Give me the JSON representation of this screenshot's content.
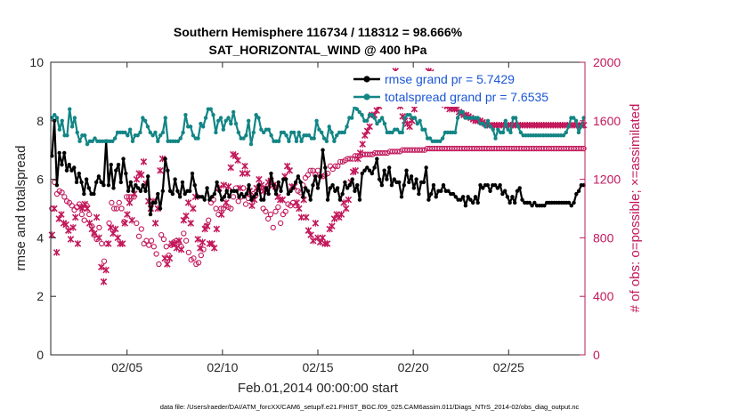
{
  "chart_data": {
    "type": "line",
    "title_line1": "Southern Hemisphere 116734 / 118312 = 98.666%",
    "title_line2": "SAT_HORIZONTAL_WIND @ 400 hPa",
    "xlabel": "Feb.01,2014 00:00:00 start",
    "ylabel_left": "rmse and totalspread",
    "ylabel_right": "# of obs: o=possible; ×=assimilated",
    "footer": "data file: /Users/raeder/DAI/ATM_forcXX/CAM6_setup/f.e21.FHIST_BGC.f09_025.CAM6assim.011/Diags_NTrS_2014-02/obs_diag_output.nc",
    "x_tick_labels": [
      "02/05",
      "02/10",
      "02/15",
      "02/20",
      "02/25"
    ],
    "x_tick_days": [
      5,
      10,
      15,
      20,
      25
    ],
    "xlim": [
      1,
      29.0
    ],
    "ylim_left": [
      0,
      10
    ],
    "ylim_right": [
      0,
      2000
    ],
    "yticks_left": [
      "0",
      "2",
      "4",
      "6",
      "8",
      "10"
    ],
    "yticks_right": [
      "0",
      "400",
      "800",
      "1200",
      "1600",
      "2000"
    ],
    "colors": {
      "rmse": "#000000",
      "spread": "#138585",
      "obs": "#c2185b",
      "legend_text": "#1a56d6"
    },
    "legend": [
      "rmse grand pr = 5.7429",
      "totalspread grand pr = 7.6535"
    ],
    "series": [
      {
        "name": "rmse",
        "values": [
          6.8,
          8.0,
          5.8,
          6.9,
          6.5,
          6.9,
          6.3,
          6.5,
          6.3,
          6.4,
          5.9,
          6.2,
          5.9,
          5.5,
          6.0,
          5.7,
          5.5,
          5.5,
          5.9,
          6.1,
          5.9,
          5.8,
          7.3,
          5.8,
          6.5,
          5.7,
          6.3,
          6.5,
          5.9,
          6.7,
          6.2,
          5.6,
          5.9,
          5.6,
          5.8,
          5.7,
          5.6,
          5.8,
          5.6,
          6.1,
          4.8,
          5.2,
          5.2,
          5.5,
          5.0,
          5.6,
          6.7,
          6.3,
          5.6,
          5.5,
          6.0,
          5.6,
          5.4,
          5.9,
          5.5,
          5.6,
          5.6,
          6.2,
          5.8,
          5.4,
          5.4,
          5.4,
          5.3,
          5.7,
          5.3,
          5.4,
          5.5,
          5.9,
          5.6,
          5.3,
          5.4,
          5.6,
          5.4,
          5.6,
          5.6,
          5.6,
          5.4,
          5.5,
          5.4,
          5.5,
          5.8,
          5.3,
          5.4,
          5.5,
          5.8,
          5.3,
          5.3,
          5.7,
          5.5,
          6.2,
          5.8,
          5.5,
          5.9,
          5.6,
          6.0,
          6.0,
          5.5,
          5.6,
          5.7,
          5.9,
          6.1,
          5.9,
          5.4,
          5.7,
          5.6,
          5.3,
          5.8,
          6.1,
          5.7,
          6.1,
          7.0,
          6.4,
          5.3,
          5.7,
          5.8,
          5.6,
          5.7,
          5.3,
          5.5,
          5.9,
          5.7,
          5.8,
          6.0,
          5.6,
          5.8,
          5.3,
          6.2,
          6.3,
          6.4,
          6.3,
          6.2,
          6.4,
          6.7,
          6.0,
          5.8,
          6.3,
          6.0,
          6.4,
          5.8,
          6.0,
          5.9,
          5.9,
          5.4,
          5.8,
          6.3,
          5.9,
          6.1,
          5.7,
          6.0,
          5.5,
          5.9,
          5.9,
          6.4,
          5.3,
          5.5,
          5.8,
          5.4,
          5.6,
          5.6,
          5.8,
          5.6,
          5.6,
          5.5,
          5.5,
          5.4,
          5.3,
          5.3,
          5.4,
          5.1,
          5.4,
          5.3,
          5.2,
          5.4,
          5.2,
          5.8,
          5.7,
          5.8,
          5.8,
          5.6,
          5.8,
          5.8,
          5.7,
          5.8,
          5.5,
          5.6,
          5.4,
          5.2,
          5.4,
          5.2,
          5.6,
          5.7,
          5.3,
          5.2,
          5.2,
          5.2,
          5.1,
          5.2,
          5.1,
          5.1,
          5.1,
          5.1,
          5.2,
          5.2,
          5.2,
          5.2,
          5.2,
          5.2,
          5.2,
          5.2,
          5.2,
          5.2,
          5.1,
          5.2,
          5.5,
          5.6,
          5.8,
          5.8
        ]
      },
      {
        "name": "totalspread",
        "values": [
          8.1,
          8.2,
          8.1,
          7.7,
          8.0,
          7.5,
          7.5,
          8.4,
          7.8,
          8.1,
          7.6,
          7.3,
          7.5,
          7.5,
          7.2,
          7.3,
          7.3,
          7.4,
          7.3,
          7.3,
          7.3,
          7.3,
          7.3,
          7.3,
          7.3,
          7.4,
          7.6,
          7.6,
          7.6,
          7.6,
          7.5,
          7.7,
          7.3,
          7.5,
          7.5,
          7.6,
          8.1,
          8.0,
          7.8,
          7.6,
          7.5,
          7.6,
          7.3,
          7.5,
          7.6,
          8.1,
          7.3,
          7.3,
          7.3,
          7.3,
          7.3,
          7.4,
          7.6,
          8.2,
          7.8,
          7.8,
          7.5,
          7.4,
          7.4,
          7.9,
          7.8,
          8.1,
          8.4,
          8.4,
          8.2,
          7.6,
          8.0,
          8.1,
          7.7,
          8.0,
          8.1,
          7.9,
          8.3,
          7.9,
          7.6,
          7.4,
          7.4,
          7.5,
          8.0,
          7.2,
          7.6,
          8.2,
          8.1,
          7.7,
          7.6,
          7.7,
          7.7,
          7.5,
          7.3,
          7.3,
          7.3,
          7.6,
          7.6,
          7.5,
          7.3,
          7.6,
          7.6,
          7.3,
          7.6,
          7.3,
          7.5,
          7.5,
          7.5,
          7.4,
          7.4,
          8.0,
          7.7,
          7.6,
          7.4,
          7.3,
          7.8,
          7.6,
          7.3,
          7.5,
          7.6,
          7.6,
          7.6,
          7.8,
          8.1,
          8.1,
          8.5,
          8.4,
          8.3,
          8.2,
          8.0,
          8.0,
          8.2,
          8.2,
          8.1,
          7.9,
          8.0,
          8.1,
          7.9,
          7.6,
          7.6,
          7.6,
          7.7,
          7.7,
          7.6,
          7.6,
          8.1,
          8.2,
          8.2,
          8.1,
          8.1,
          7.9,
          8.0,
          7.7,
          7.7,
          7.4,
          7.4,
          7.3,
          7.3,
          7.3,
          7.3,
          7.4,
          7.6,
          7.6,
          7.6,
          7.6,
          7.6,
          8.1,
          8.3,
          8.3,
          8.1,
          8.1,
          8.1,
          8.1,
          8.1,
          8.1,
          7.9,
          7.9,
          7.8,
          8.0,
          7.8,
          7.7,
          7.4,
          7.7,
          7.6,
          7.6,
          8.0,
          7.7,
          7.6,
          8.1,
          8.1,
          7.8,
          7.6,
          7.5,
          7.5,
          7.5,
          7.5,
          7.5,
          7.5,
          7.5,
          7.5,
          7.5,
          7.5,
          7.5,
          7.5,
          7.5,
          7.5,
          7.5,
          7.5,
          7.5,
          7.6,
          7.8,
          8.1,
          8.1,
          8.0,
          7.6,
          7.8,
          8.1
        ]
      }
    ],
    "obs_possible": [
      1000,
      1180,
      1100,
      1120,
      1110,
      1080,
      1050,
      1040,
      1020,
      990,
      1010,
      1030,
      960,
      920,
      1020,
      960,
      880,
      820,
      790,
      870,
      760,
      640,
      760,
      900,
      1040,
      1000,
      1000,
      1040,
      1000,
      910,
      1080,
      1080,
      1080,
      1080,
      900,
      810,
      860,
      760,
      780,
      750,
      780,
      740,
      690,
      620,
      820,
      790,
      740,
      680,
      750,
      770,
      780,
      770,
      740,
      830,
      780,
      700,
      650,
      660,
      620,
      630,
      680,
      720,
      880,
      920,
      1040,
      1060,
      1000,
      960,
      1000,
      1000,
      1020,
      1010,
      1000,
      1080,
      1140,
      1050,
      1080,
      1140,
      1030,
      1070,
      1090,
      1100,
      1090,
      1130,
      1140,
      1000,
      980,
      930,
      960,
      870,
      980,
      1010,
      900,
      960,
      980,
      1030,
      1020,
      1040,
      1020,
      1120,
      1110,
      1160,
      1210,
      1230,
      1260,
      1260,
      1230,
      1260,
      1220,
      1220,
      1230,
      1240,
      1290,
      1270,
      1290,
      1290,
      1320,
      1320,
      1330,
      1340,
      1340,
      1340,
      1360,
      1360,
      1360,
      1370,
      1370,
      1370,
      1370,
      1370,
      1380,
      1380,
      1380,
      1380,
      1380,
      1380,
      1390,
      1390,
      1390,
      1390,
      1390,
      1400,
      1400,
      1400,
      1400,
      1400,
      1400,
      1400,
      1400,
      1400,
      1400,
      1410,
      1410,
      1410,
      1410,
      1410,
      1410,
      1410,
      1410,
      1410,
      1410,
      1410,
      1410,
      1410,
      1410,
      1410,
      1410,
      1410,
      1410,
      1410,
      1410,
      1410,
      1410,
      1410,
      1410,
      1410,
      1410,
      1410,
      1410,
      1410,
      1410,
      1410,
      1410,
      1410,
      1410,
      1410,
      1410,
      1410,
      1410,
      1410,
      1410,
      1410,
      1410,
      1410,
      1410,
      1410,
      1410,
      1410,
      1410,
      1410,
      1410,
      1410,
      1410,
      1410,
      1410,
      1410,
      1410,
      1410,
      1410,
      1410,
      1410,
      1410,
      1410,
      1410,
      1410
    ],
    "obs_assimilated": [
      820,
      1000,
      700,
      930,
      960,
      900,
      890,
      850,
      790,
      870,
      940,
      760,
      1010,
      1000,
      1030,
      1000,
      900,
      860,
      830,
      940,
      800,
      600,
      500,
      580,
      760,
      870,
      830,
      860,
      800,
      760,
      760,
      900,
      960,
      1040,
      920,
      1100,
      1200,
      1240,
      1230,
      1320,
      1170,
      1050,
      1000,
      1050,
      900,
      1000,
      1260,
      1340,
      660,
      620,
      660,
      760,
      760,
      730,
      780,
      720,
      920,
      950,
      1040,
      900,
      1000,
      1080,
      790,
      730,
      770,
      860,
      880,
      760,
      760,
      730,
      860,
      1140,
      960,
      1160,
      1040,
      1150,
      1280,
      1370,
      1360,
      1330,
      1140,
      1240,
      1290,
      1240,
      1120,
      1020,
      1060,
      1140,
      1200,
      1160,
      1120,
      1140,
      1180,
      1190,
      1160,
      1150,
      1080,
      1060,
      1060,
      1220,
      1290,
      1260,
      1150,
      1150,
      1040,
      1000,
      940,
      1060,
      940,
      850,
      820,
      780,
      900,
      800,
      770,
      800,
      760,
      760,
      860,
      880,
      930,
      960,
      940,
      960,
      1040,
      1000,
      1060,
      1180,
      1250,
      1260,
      1340,
      1380,
      1440,
      1500,
      1530,
      1560,
      1640,
      1640,
      1670,
      1700,
      1770,
      1760,
      1800,
      1830,
      1860,
      1900,
      1940,
      1780,
      1700,
      1630,
      1600,
      1580,
      1560,
      1600,
      1680,
      1720,
      1760,
      1790,
      1840,
      1890,
      1940,
      1930,
      1880,
      1850,
      1800,
      1760,
      1740,
      1710,
      1700,
      1680,
      1690,
      1680,
      1680,
      1660,
      1650,
      1640,
      1640,
      1630,
      1620,
      1610,
      1600,
      1600,
      1600,
      1590,
      1580,
      1570,
      1570,
      1570,
      1570,
      1570,
      1570,
      1570,
      1570,
      1570,
      1570,
      1570,
      1570,
      1570,
      1570,
      1570,
      1570,
      1570,
      1570,
      1570,
      1570,
      1570,
      1570,
      1570,
      1570,
      1570,
      1570,
      1570,
      1570,
      1570,
      1570,
      1570,
      1570,
      1570,
      1570,
      1570,
      1570,
      1570,
      1570,
      1570,
      1570,
      1570,
      1570
    ]
  }
}
